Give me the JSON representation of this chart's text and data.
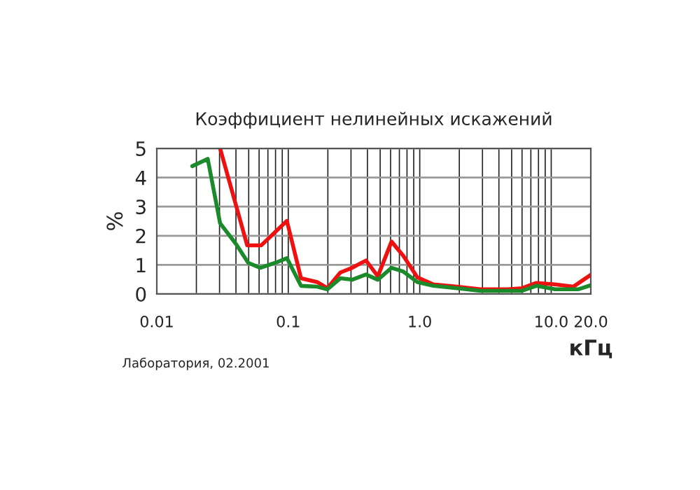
{
  "chart_data": {
    "type": "line",
    "title": "Коэффициент нелинейных искажений",
    "ylabel": "%",
    "xlabel": "кГц",
    "annotations": [
      "Лаборатория, 02.2001"
    ],
    "log": "x",
    "xlim": [
      0.01,
      20
    ],
    "xticks": [
      0.01,
      0.1,
      {
        "value": 1,
        "label": "1.0"
      },
      {
        "value": 10,
        "label": "10.0"
      },
      {
        "value": 20,
        "label": "20.0"
      }
    ],
    "ylim": [
      0,
      5
    ],
    "yticks": [
      0,
      1,
      2,
      3,
      4,
      5
    ],
    "grid": true,
    "legend": false,
    "line_style": "solid",
    "series": [
      {
        "color": "#ee1111",
        "x": [
          0.0303,
          0.0487,
          0.0623,
          0.0976,
          0.125,
          0.166,
          0.198,
          0.249,
          0.306,
          0.39,
          0.48,
          0.61,
          0.75,
          0.96,
          1.27,
          1.92,
          2.9,
          4.7,
          6.0,
          7.7,
          10.7,
          14.7,
          20
        ],
        "values": [
          5.0,
          1.67,
          1.67,
          2.51,
          0.54,
          0.41,
          0.2,
          0.74,
          0.9,
          1.15,
          0.61,
          1.8,
          1.31,
          0.57,
          0.33,
          0.25,
          0.16,
          0.16,
          0.2,
          0.38,
          0.33,
          0.25,
          0.66
        ]
      },
      {
        "color": "#1a8a2a",
        "x": [
          0.0186,
          0.0244,
          0.0303,
          0.04,
          0.0496,
          0.0613,
          0.0796,
          0.0976,
          0.125,
          0.166,
          0.198,
          0.249,
          0.306,
          0.39,
          0.48,
          0.61,
          0.75,
          0.96,
          1.27,
          1.92,
          2.9,
          4.7,
          6.0,
          7.7,
          10.7,
          16,
          20
        ],
        "values": [
          4.39,
          4.64,
          2.43,
          1.72,
          1.07,
          0.9,
          1.07,
          1.23,
          0.28,
          0.25,
          0.16,
          0.54,
          0.49,
          0.67,
          0.49,
          0.9,
          0.77,
          0.41,
          0.28,
          0.2,
          0.11,
          0.11,
          0.11,
          0.28,
          0.16,
          0.16,
          0.3
        ]
      }
    ]
  }
}
